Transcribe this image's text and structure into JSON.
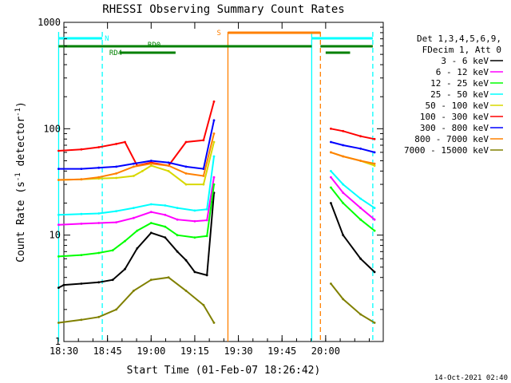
{
  "chart_data": {
    "type": "line",
    "title": "RHESSI Observing Summary Count Rates",
    "xlabel": "Start Time (01-Feb-07 18:26:42)",
    "ylabel_main": "Count Rate (s",
    "ylabel_sup1": "-1",
    "ylabel_mid": " detector",
    "ylabel_sup2": "-1",
    "ylabel_end": ")",
    "y_scale": "log",
    "ylim": [
      1,
      1000
    ],
    "xlim_minutes": [
      18.5,
      20.33
    ],
    "x_ticks": [
      {
        "t": 18.5,
        "label": "18:30"
      },
      {
        "t": 18.75,
        "label": "18:45"
      },
      {
        "t": 19.0,
        "label": "19:00"
      },
      {
        "t": 19.25,
        "label": "19:15"
      },
      {
        "t": 19.5,
        "label": "19:30"
      },
      {
        "t": 19.75,
        "label": "19:45"
      },
      {
        "t": 20.0,
        "label": "20:00"
      }
    ],
    "y_ticks": [
      {
        "v": 1,
        "label": "1"
      },
      {
        "v": 10,
        "label": "10"
      },
      {
        "v": 100,
        "label": "100"
      },
      {
        "v": 1000,
        "label": "1000"
      }
    ],
    "legend_header": [
      "Det 1,3,4,5,6,9,",
      "FDecim 1, Att 0"
    ],
    "legend_position": "right",
    "data_gap": [
      19.38,
      19.9
    ],
    "series": [
      {
        "name": "3 - 6 keV",
        "color": "#000000",
        "points": [
          [
            18.47,
            3.2
          ],
          [
            18.5,
            3.4
          ],
          [
            18.6,
            3.5
          ],
          [
            18.7,
            3.6
          ],
          [
            18.78,
            3.8
          ],
          [
            18.85,
            4.8
          ],
          [
            18.92,
            7.5
          ],
          [
            19.0,
            10.5
          ],
          [
            19.08,
            9.5
          ],
          [
            19.15,
            7.0
          ],
          [
            19.2,
            5.8
          ],
          [
            19.25,
            4.5
          ],
          [
            19.32,
            4.2
          ],
          [
            19.36,
            25
          ]
        ]
      },
      {
        "name": "6 - 12 keV",
        "color": "#ff00ff",
        "points": [
          [
            18.47,
            12.5
          ],
          [
            18.6,
            12.8
          ],
          [
            18.7,
            13.0
          ],
          [
            18.8,
            13.2
          ],
          [
            18.9,
            14.5
          ],
          [
            19.0,
            16.5
          ],
          [
            19.08,
            15.5
          ],
          [
            19.15,
            14.0
          ],
          [
            19.25,
            13.5
          ],
          [
            19.32,
            13.8
          ],
          [
            19.36,
            35
          ]
        ]
      },
      {
        "name": "12 - 25 keV",
        "color": "#00ff00",
        "points": [
          [
            18.47,
            6.3
          ],
          [
            18.6,
            6.5
          ],
          [
            18.7,
            6.8
          ],
          [
            18.78,
            7.2
          ],
          [
            18.85,
            8.8
          ],
          [
            18.92,
            11
          ],
          [
            19.0,
            13
          ],
          [
            19.08,
            12
          ],
          [
            19.15,
            10
          ],
          [
            19.25,
            9.5
          ],
          [
            19.32,
            9.8
          ],
          [
            19.36,
            30
          ]
        ]
      },
      {
        "name": "25 - 50 keV",
        "color": "#00ffff",
        "points": [
          [
            18.47,
            15.5
          ],
          [
            18.6,
            15.8
          ],
          [
            18.7,
            16
          ],
          [
            18.8,
            16.8
          ],
          [
            18.9,
            18
          ],
          [
            19.0,
            19.5
          ],
          [
            19.08,
            19
          ],
          [
            19.15,
            18
          ],
          [
            19.25,
            17
          ],
          [
            19.32,
            17.5
          ],
          [
            19.36,
            55
          ]
        ]
      },
      {
        "name": "50 - 100 keV",
        "color": "#d8d800",
        "points": [
          [
            18.47,
            33
          ],
          [
            18.6,
            33.5
          ],
          [
            18.7,
            34
          ],
          [
            18.8,
            34.5
          ],
          [
            18.9,
            36
          ],
          [
            18.95,
            40
          ],
          [
            19.0,
            45
          ],
          [
            19.1,
            40
          ],
          [
            19.2,
            30
          ],
          [
            19.3,
            30
          ],
          [
            19.36,
            75
          ]
        ]
      },
      {
        "name": "100 - 300 keV",
        "color": "#ff0000",
        "points": [
          [
            18.47,
            62
          ],
          [
            18.6,
            64
          ],
          [
            18.7,
            67
          ],
          [
            18.8,
            72
          ],
          [
            18.85,
            75
          ],
          [
            18.92,
            45
          ],
          [
            19.0,
            48
          ],
          [
            19.1,
            45
          ],
          [
            19.2,
            75
          ],
          [
            19.3,
            78
          ],
          [
            19.36,
            180
          ]
        ]
      },
      {
        "name": "300 - 800 keV",
        "color": "#0000ff",
        "points": [
          [
            18.47,
            42
          ],
          [
            18.6,
            42
          ],
          [
            18.7,
            43
          ],
          [
            18.8,
            44
          ],
          [
            18.9,
            47
          ],
          [
            19.0,
            50
          ],
          [
            19.1,
            48
          ],
          [
            19.2,
            44
          ],
          [
            19.3,
            42
          ],
          [
            19.36,
            120
          ]
        ]
      },
      {
        "name": "800 - 7000 keV",
        "color": "#ff8000",
        "points": [
          [
            18.47,
            33
          ],
          [
            18.6,
            33.5
          ],
          [
            18.7,
            35
          ],
          [
            18.8,
            38
          ],
          [
            18.9,
            44
          ],
          [
            19.0,
            47
          ],
          [
            19.1,
            45
          ],
          [
            19.2,
            38
          ],
          [
            19.3,
            36
          ],
          [
            19.36,
            90
          ]
        ]
      },
      {
        "name": "7000 - 15000 keV",
        "color": "#808000",
        "points": [
          [
            18.47,
            1.5
          ],
          [
            18.6,
            1.6
          ],
          [
            18.7,
            1.7
          ],
          [
            18.8,
            2.0
          ],
          [
            18.9,
            3.0
          ],
          [
            19.0,
            3.8
          ],
          [
            19.1,
            4.0
          ],
          [
            19.2,
            3.0
          ],
          [
            19.3,
            2.2
          ],
          [
            19.36,
            1.5
          ]
        ]
      }
    ],
    "post_gap_series": [
      {
        "name": "3 - 6 keV",
        "color": "#000000",
        "points": [
          [
            20.03,
            20
          ],
          [
            20.1,
            10
          ],
          [
            20.2,
            6
          ],
          [
            20.28,
            4.5
          ]
        ]
      },
      {
        "name": "6 - 12 keV",
        "color": "#ff00ff",
        "points": [
          [
            20.03,
            35
          ],
          [
            20.1,
            25
          ],
          [
            20.2,
            18
          ],
          [
            20.28,
            14
          ]
        ]
      },
      {
        "name": "12 - 25 keV",
        "color": "#00ff00",
        "points": [
          [
            20.03,
            28
          ],
          [
            20.1,
            20
          ],
          [
            20.2,
            14
          ],
          [
            20.28,
            11
          ]
        ]
      },
      {
        "name": "25 - 50 keV",
        "color": "#00ffff",
        "points": [
          [
            20.03,
            40
          ],
          [
            20.1,
            30
          ],
          [
            20.2,
            22
          ],
          [
            20.28,
            18
          ]
        ]
      },
      {
        "name": "50 - 100 keV",
        "color": "#d8d800",
        "points": [
          [
            20.03,
            60
          ],
          [
            20.1,
            55
          ],
          [
            20.2,
            50
          ],
          [
            20.28,
            45
          ]
        ]
      },
      {
        "name": "100 - 300 keV",
        "color": "#ff0000",
        "points": [
          [
            20.03,
            100
          ],
          [
            20.1,
            95
          ],
          [
            20.2,
            85
          ],
          [
            20.28,
            80
          ]
        ]
      },
      {
        "name": "300 - 800 keV",
        "color": "#0000ff",
        "points": [
          [
            20.03,
            75
          ],
          [
            20.1,
            70
          ],
          [
            20.2,
            65
          ],
          [
            20.28,
            60
          ]
        ]
      },
      {
        "name": "800 - 7000 keV",
        "color": "#ff8000",
        "points": [
          [
            20.03,
            60
          ],
          [
            20.1,
            55
          ],
          [
            20.2,
            50
          ],
          [
            20.28,
            47
          ]
        ]
      },
      {
        "name": "7000 - 15000 keV",
        "color": "#808000",
        "points": [
          [
            20.03,
            3.5
          ],
          [
            20.1,
            2.5
          ],
          [
            20.2,
            1.8
          ],
          [
            20.28,
            1.5
          ]
        ]
      }
    ],
    "annotations": {
      "labels": [
        "N",
        "S",
        "RD0",
        "RD4"
      ],
      "vertical_lines": [
        {
          "t": 18.47,
          "color": "#00ffff",
          "style": "solid"
        },
        {
          "t": 18.72,
          "color": "#00ffff",
          "style": "dashed"
        },
        {
          "t": 19.44,
          "color": "#ff8000",
          "style": "solid"
        },
        {
          "t": 19.92,
          "color": "#00ffff",
          "style": "solid"
        },
        {
          "t": 19.97,
          "color": "#ff8000",
          "style": "dashed"
        },
        {
          "t": 20.27,
          "color": "#00ffff",
          "style": "dashed"
        }
      ]
    },
    "footer_date": "14-Oct-2021 02:40"
  }
}
